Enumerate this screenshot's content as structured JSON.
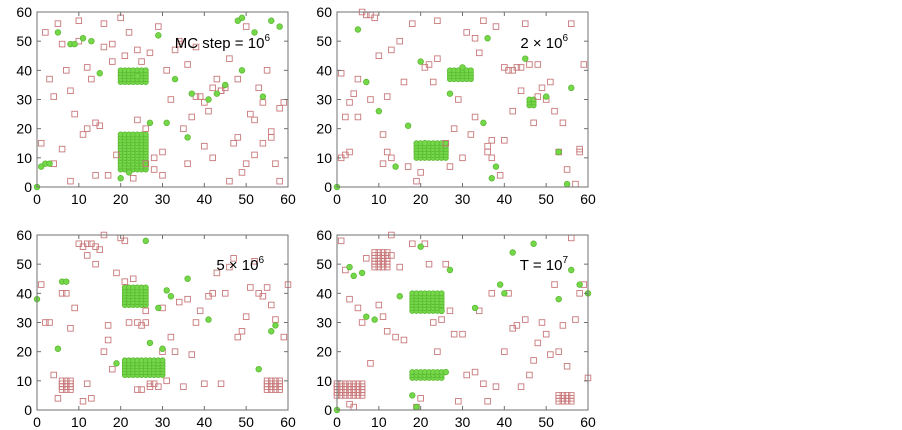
{
  "figure": {
    "colors": {
      "vacancy": "#c8787a",
      "atom": "#74d84a",
      "atom_stroke": "#5cb832",
      "axis": "#707070"
    }
  },
  "chart_data": [
    {
      "type": "scatter",
      "annotation": {
        "base": "MC step = 10",
        "exp": "6"
      },
      "xlim": [
        0,
        60
      ],
      "ylim": [
        0,
        60
      ],
      "xticks": [
        "0",
        "10",
        "20",
        "30",
        "40",
        "50",
        "60"
      ],
      "yticks": [
        "0",
        "10",
        "20",
        "30",
        "40",
        "50",
        "60"
      ],
      "grid": false,
      "clusters": [
        {
          "x0": 20,
          "x1": 26,
          "y0": 36,
          "y1": 40
        },
        {
          "x0": 20,
          "x1": 26,
          "y0": 6,
          "y1": 18
        }
      ],
      "series": [
        {
          "marker": "open-square",
          "x": [
            2,
            4,
            5,
            7,
            8,
            10,
            12,
            14,
            16,
            18,
            19,
            22,
            24,
            26,
            28,
            30,
            32,
            34,
            36,
            38,
            40,
            42,
            44,
            46,
            48,
            50,
            52,
            54,
            56,
            58,
            3,
            6,
            9,
            11,
            15,
            17,
            21,
            25,
            27,
            31,
            35,
            37,
            41,
            43,
            45,
            47,
            49,
            51,
            53,
            55,
            57,
            1,
            13,
            23,
            29,
            33,
            39,
            59,
            6,
            14,
            44,
            52,
            36,
            28,
            18,
            10,
            42,
            54,
            8,
            34,
            48,
            24,
            16,
            4,
            30,
            46,
            56,
            20,
            12,
            40,
            50,
            26,
            38,
            58
          ],
          "y": [
            53,
            31,
            56,
            40,
            33,
            57,
            20,
            22,
            56,
            49,
            11,
            53,
            47,
            8,
            6,
            12,
            30,
            50,
            8,
            31,
            14,
            34,
            33,
            2,
            37,
            55,
            11,
            15,
            17,
            2,
            37,
            13,
            25,
            18,
            21,
            4,
            45,
            43,
            46,
            40,
            20,
            24,
            26,
            37,
            34,
            15,
            5,
            25,
            34,
            40,
            8,
            15,
            37,
            3,
            55,
            47,
            31,
            29,
            49,
            4,
            33,
            23,
            42,
            10,
            43,
            50,
            10,
            29,
            2,
            49,
            17,
            23,
            48,
            8,
            4,
            44,
            19,
            58,
            41,
            29,
            8,
            20,
            48,
            27
          ]
        },
        {
          "marker": "filled-circle",
          "x": [
            0,
            2,
            1,
            5,
            8,
            9,
            11,
            13,
            22,
            27,
            33,
            37,
            43,
            48,
            49,
            52,
            54,
            56,
            58,
            36,
            29,
            24,
            20,
            45,
            31,
            3,
            15,
            49,
            41
          ],
          "y": [
            0,
            8,
            7,
            53,
            49,
            49,
            51,
            50,
            5,
            22,
            37,
            32,
            32,
            57,
            58,
            53,
            31,
            57,
            55,
            17,
            52,
            38,
            3,
            35,
            22,
            8,
            39,
            40,
            30
          ]
        }
      ]
    },
    {
      "type": "scatter",
      "annotation": {
        "base": "2 × 10",
        "exp": "6"
      },
      "xlim": [
        0,
        60
      ],
      "ylim": [
        0,
        60
      ],
      "xticks": [
        "0",
        "10",
        "20",
        "30",
        "40",
        "50",
        "60"
      ],
      "yticks": [
        "0",
        "10",
        "20",
        "30",
        "40",
        "50",
        "60"
      ],
      "grid": false,
      "clusters": [
        {
          "x0": 27,
          "x1": 32,
          "y0": 37,
          "y1": 40
        },
        {
          "x0": 19,
          "x1": 26,
          "y0": 10,
          "y1": 15
        },
        {
          "x0": 46,
          "x1": 47,
          "y0": 28,
          "y1": 30
        }
      ],
      "series": [
        {
          "marker": "open-square",
          "x": [
            6,
            7,
            8,
            9,
            5,
            4,
            3,
            1,
            2,
            12,
            13,
            15,
            10,
            18,
            22,
            24,
            33,
            35,
            38,
            40,
            41,
            42,
            43,
            44,
            46,
            48,
            50,
            52,
            54,
            56,
            58,
            59,
            1,
            3,
            5,
            11,
            17,
            19,
            21,
            23,
            27,
            29,
            31,
            33,
            37,
            39,
            45,
            47,
            49,
            51,
            53,
            55,
            57,
            36,
            36,
            37,
            11,
            12,
            13,
            30,
            34,
            40,
            42,
            44,
            58,
            2,
            8,
            16,
            24,
            28,
            32,
            48,
            26,
            20
          ],
          "y": [
            60,
            59,
            59,
            58,
            37,
            32,
            29,
            10,
            11,
            31,
            47,
            50,
            45,
            56,
            42,
            57,
            51,
            57,
            55,
            41,
            40,
            40,
            41,
            41,
            42,
            42,
            30,
            26,
            22,
            56,
            13,
            42,
            39,
            12,
            24,
            18,
            7,
            2,
            41,
            36,
            7,
            30,
            53,
            24,
            16,
            4,
            56,
            22,
            34,
            36,
            12,
            6,
            1,
            14,
            12,
            10,
            8,
            12,
            10,
            10,
            46,
            16,
            26,
            33,
            12,
            24,
            30,
            36,
            44,
            20,
            18,
            31,
            15,
            5
          ]
        },
        {
          "marker": "filled-circle",
          "x": [
            0,
            7,
            5,
            10,
            17,
            20,
            27,
            30,
            36,
            37,
            38,
            45,
            50,
            53,
            55,
            56,
            14,
            21,
            35
          ],
          "y": [
            0,
            36,
            54,
            26,
            21,
            43,
            32,
            41,
            51,
            3,
            7,
            44,
            31,
            12,
            1,
            34,
            7,
            15,
            22
          ]
        }
      ]
    },
    {
      "type": "scatter",
      "annotation": {
        "base": "5 × 10",
        "exp": "6"
      },
      "xlim": [
        0,
        60
      ],
      "ylim": [
        0,
        60
      ],
      "xticks": [
        "0",
        "10",
        "20",
        "30",
        "40",
        "50",
        "60"
      ],
      "yticks": [
        "0",
        "10",
        "20",
        "30",
        "40",
        "50",
        "60"
      ],
      "grid": false,
      "clusters": [
        {
          "x0": 21,
          "x1": 26,
          "y0": 36,
          "y1": 42
        },
        {
          "x0": 21,
          "x1": 30,
          "y0": 12,
          "y1": 17
        },
        {
          "x0": 6,
          "x1": 8,
          "y0": 7,
          "y1": 10
        },
        {
          "x0": 55,
          "x1": 58,
          "y0": 7,
          "y1": 10
        }
      ],
      "series": [
        {
          "marker": "open-square",
          "x": [
            10,
            11,
            12,
            13,
            14,
            15,
            16,
            20,
            21,
            2,
            3,
            4,
            6,
            7,
            5,
            9,
            12,
            16,
            17,
            18,
            22,
            26,
            27,
            28,
            32,
            33,
            35,
            36,
            38,
            40,
            41,
            42,
            44,
            45,
            47,
            49,
            51,
            53,
            55,
            56,
            57,
            59,
            60,
            24,
            25,
            26,
            24,
            25,
            13,
            11,
            19,
            23,
            37,
            39,
            43,
            48,
            52,
            54,
            1,
            8,
            31,
            34,
            46,
            50,
            29,
            30,
            30,
            27,
            14,
            12,
            21,
            17
          ],
          "y": [
            57,
            56,
            57,
            57,
            56,
            55,
            60,
            59,
            58,
            30,
            30,
            12,
            40,
            40,
            4,
            35,
            53,
            20,
            24,
            14,
            30,
            30,
            8,
            9,
            25,
            20,
            8,
            38,
            30,
            9,
            39,
            40,
            9,
            40,
            52,
            27,
            42,
            40,
            42,
            36,
            31,
            25,
            43,
            30,
            29,
            34,
            7,
            7,
            4,
            3,
            47,
            45,
            19,
            34,
            47,
            25,
            51,
            39,
            43,
            28,
            10,
            37,
            49,
            32,
            8,
            20,
            35,
            9,
            50,
            9,
            44,
            29
          ]
        },
        {
          "marker": "filled-circle",
          "x": [
            0,
            5,
            6,
            7,
            26,
            29,
            30,
            31,
            32,
            41,
            53,
            56,
            57,
            27,
            19,
            36
          ],
          "y": [
            38,
            21,
            44,
            44,
            58,
            35,
            21,
            41,
            39,
            31,
            14,
            27,
            29,
            23,
            16,
            45
          ]
        }
      ]
    },
    {
      "type": "scatter",
      "annotation": {
        "base": "T = 10",
        "exp": "7"
      },
      "xlim": [
        0,
        60
      ],
      "ylim": [
        0,
        60
      ],
      "xticks": [
        "0",
        "10",
        "20",
        "30",
        "40",
        "50",
        "60"
      ],
      "yticks": [
        "0",
        "10",
        "20",
        "30",
        "40",
        "50",
        "60"
      ],
      "grid": false,
      "clusters": [
        {
          "x0": 18,
          "x1": 25,
          "y0": 34,
          "y1": 40
        },
        {
          "x0": 18,
          "x1": 25,
          "y0": 11,
          "y1": 13
        },
        {
          "x0": 0,
          "x1": 6,
          "y0": 5,
          "y1": 9
        },
        {
          "x0": 9,
          "x1": 12,
          "y0": 49,
          "y1": 54
        },
        {
          "x0": 53,
          "x1": 56,
          "y0": 3,
          "y1": 5
        }
      ],
      "series": [
        {
          "marker": "open-square",
          "x": [
            3,
            7,
            13,
            15,
            21,
            22,
            26,
            28,
            30,
            31,
            33,
            34,
            37,
            38,
            40,
            42,
            45,
            46,
            47,
            49,
            50,
            52,
            54,
            55,
            57,
            58,
            59,
            60,
            1,
            2,
            4,
            6,
            8,
            10,
            11,
            12,
            13,
            14,
            16,
            18,
            20,
            23,
            25,
            27,
            35,
            43,
            48,
            51,
            53,
            3,
            5,
            24,
            29,
            36,
            44,
            56,
            19,
            41
          ],
          "y": [
            38,
            52,
            60,
            49,
            57,
            50,
            50,
            26,
            26,
            12,
            13,
            34,
            40,
            8,
            20,
            28,
            31,
            12,
            17,
            30,
            26,
            43,
            29,
            15,
            31,
            40,
            43,
            11,
            58,
            48,
            1,
            30,
            16,
            36,
            32,
            27,
            53,
            25,
            24,
            57,
            4,
            30,
            31,
            34,
            9,
            29,
            23,
            19,
            20,
            2,
            35,
            20,
            3,
            3,
            8,
            59,
            1,
            40
          ]
        },
        {
          "marker": "filled-circle",
          "x": [
            0,
            4,
            6,
            7,
            15,
            18,
            19,
            27,
            33,
            47,
            53,
            60,
            9,
            26,
            25,
            20,
            40,
            42,
            39,
            56,
            58,
            3
          ],
          "y": [
            0,
            46,
            47,
            32,
            39,
            5,
            1,
            48,
            35,
            57,
            38,
            40,
            31,
            13,
            34,
            56,
            40,
            54,
            43,
            48,
            43,
            49
          ]
        }
      ]
    }
  ]
}
